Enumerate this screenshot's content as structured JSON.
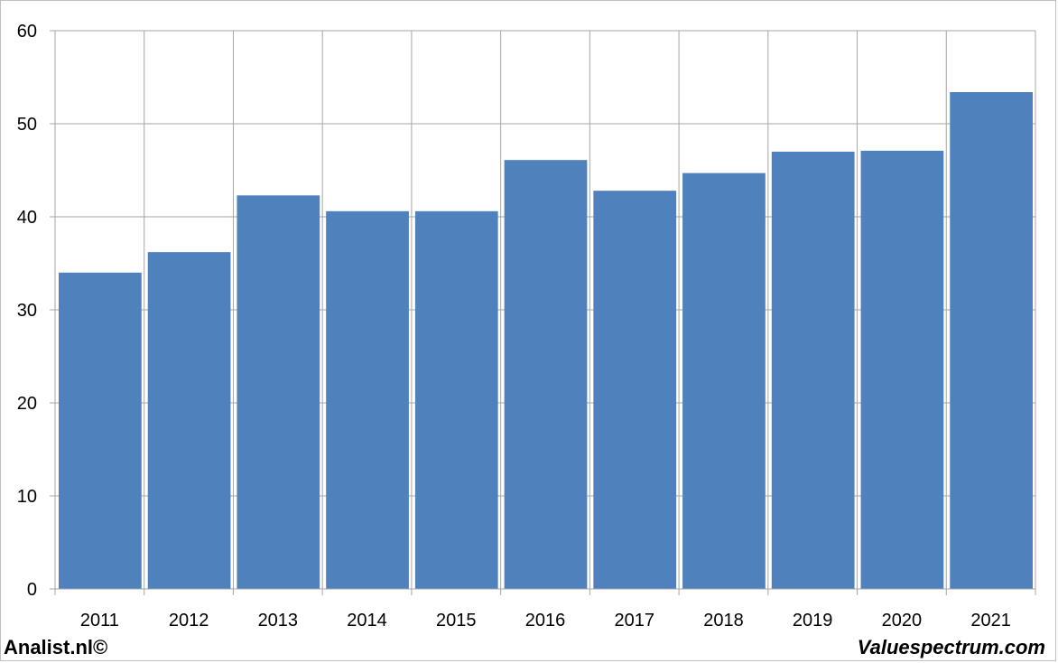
{
  "chart_data": {
    "type": "bar",
    "categories": [
      "2011",
      "2012",
      "2013",
      "2014",
      "2015",
      "2016",
      "2017",
      "2018",
      "2019",
      "2020",
      "2021"
    ],
    "values": [
      34.0,
      36.2,
      42.3,
      40.6,
      40.6,
      46.1,
      42.8,
      44.7,
      47.0,
      47.1,
      53.4
    ],
    "yticks": [
      "0",
      "10",
      "20",
      "30",
      "40",
      "50",
      "60"
    ],
    "ylim": [
      0,
      60
    ],
    "grid": true,
    "bar_color": "#4F81BD",
    "grid_color": "#A6A6A6"
  },
  "footer": {
    "left": "Analist.nl©",
    "right": "Valuespectrum.com"
  }
}
